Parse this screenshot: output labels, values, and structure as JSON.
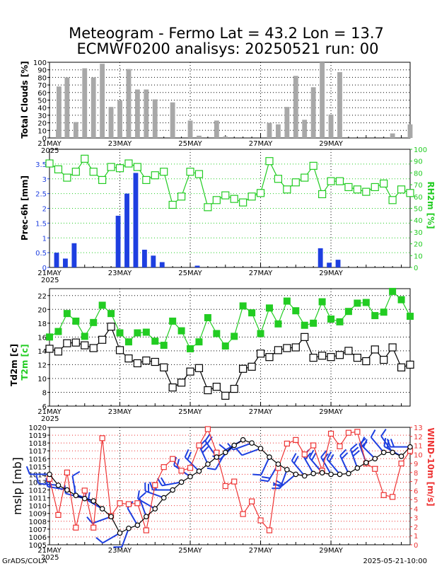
{
  "title_line1": "Meteogram - Fermo Lat = 43.2 Lon = 13.7",
  "title_line2": "ECMWF0200 analisys: 20250521 run: 00",
  "footer_left": "GrADS/COLA",
  "footer_right": "2025-05-21-10:00",
  "x_ticks": [
    "21MAY",
    "23MAY",
    "25MAY",
    "27MAY",
    "29MAY"
  ],
  "year_label": "2025",
  "colors": {
    "bar_gray": "#a8a8a8",
    "precip_blue": "#1e3fe0",
    "rh_green": "#22cc22",
    "wind_red": "#ee3333",
    "t2m_green": "#22cc22",
    "black": "#000000"
  },
  "chart_data": [
    {
      "type": "bar",
      "ylabel": "Total Clouds [%]",
      "ylim": [
        0,
        100
      ],
      "yticks": [
        0,
        10,
        20,
        30,
        40,
        50,
        60,
        70,
        80,
        90,
        100
      ],
      "step_hours": 6,
      "series": [
        {
          "values": [
            68,
            11,
            80,
            21,
            92,
            80,
            98,
            41,
            50,
            91,
            64,
            64,
            51,
            0,
            47,
            0,
            23,
            3,
            0,
            23,
            2,
            0,
            0,
            0,
            0,
            20,
            18,
            41,
            82,
            24,
            67,
            100,
            31,
            87,
            0,
            0,
            0,
            0,
            0,
            6,
            0,
            18
          ]
        }
      ]
    },
    {
      "type": "bar+line",
      "ylabel": "Prec-6h [mm]",
      "ylabel_right": "RH2m [%]",
      "ylim": [
        0,
        4
      ],
      "yticks": [
        0,
        0.5,
        1,
        1.5,
        2,
        2.5,
        3,
        3.5
      ],
      "ylim_right": [
        0,
        100
      ],
      "yticks_right": [
        0,
        10,
        20,
        30,
        40,
        50,
        60,
        70,
        80,
        90,
        100
      ],
      "step_hours": 6,
      "series": [
        {
          "axis": "left",
          "kind": "bar",
          "values": [
            0.5,
            0.3,
            0.82,
            0,
            0,
            0,
            0,
            1.75,
            2.5,
            3.2,
            0.6,
            0.4,
            0.18,
            0,
            0,
            0,
            0.06,
            0,
            0,
            0,
            0,
            0,
            0,
            0,
            0,
            0,
            0,
            0,
            0,
            0,
            0.65,
            0.16,
            0.26,
            0,
            0,
            0,
            0,
            0,
            0,
            0,
            0,
            0
          ]
        },
        {
          "axis": "right",
          "kind": "line",
          "values": [
            88,
            83,
            76,
            81,
            92,
            81,
            74,
            85,
            84,
            88,
            85,
            74,
            78,
            81,
            53,
            60,
            81,
            79,
            51,
            57,
            61,
            58,
            55,
            60,
            63,
            90,
            75,
            66,
            72,
            76,
            86,
            62,
            73,
            73,
            68,
            66,
            64,
            68,
            71,
            57,
            66,
            63
          ]
        }
      ]
    },
    {
      "type": "line",
      "ylabel": "Td2m [c]",
      "ylabel2": "T2m [c]",
      "ylim": [
        6,
        23
      ],
      "yticks": [
        6,
        8,
        10,
        12,
        14,
        16,
        18,
        20,
        22
      ],
      "step_hours": 6,
      "series": [
        {
          "name": "T2m",
          "values": [
            16.0,
            16.8,
            19.4,
            18.3,
            16.1,
            18.1,
            20.6,
            19.4,
            16.6,
            15.3,
            16.6,
            16.7,
            15.4,
            14.8,
            18.3,
            16.9,
            14.3,
            15.3,
            18.8,
            16.5,
            14.7,
            16.1,
            20.5,
            19.5,
            16.5,
            20.2,
            17.9,
            21.2,
            19.8,
            17.7,
            18.0,
            21.1,
            18.6,
            18.2,
            19.7,
            20.9,
            21.0,
            19.1,
            19.6,
            22.6,
            21.4,
            19.0
          ]
        },
        {
          "name": "Td2m",
          "values": [
            14.3,
            13.9,
            15.1,
            15.2,
            14.8,
            14.4,
            15.6,
            17.5,
            14.1,
            12.9,
            12.2,
            12.6,
            12.4,
            11.6,
            8.7,
            9.4,
            11.0,
            11.5,
            8.3,
            8.8,
            7.5,
            8.5,
            11.4,
            11.7,
            13.6,
            13.1,
            14.1,
            14.4,
            14.5,
            16.0,
            13.0,
            13.3,
            13.1,
            13.4,
            14.0,
            13.0,
            12.5,
            14.2,
            12.7,
            14.5,
            11.6,
            12.0
          ]
        }
      ]
    },
    {
      "type": "line",
      "ylabel": "mslp [mb]",
      "ylabel_right": "WIND-10m [m/s]",
      "ylim": [
        1005,
        1020
      ],
      "yticks": [
        1005,
        1006,
        1007,
        1008,
        1009,
        1010,
        1011,
        1012,
        1013,
        1014,
        1015,
        1016,
        1017,
        1018,
        1019,
        1020
      ],
      "ylim_right": [
        0,
        13
      ],
      "yticks_right": [
        0,
        1,
        2,
        3,
        4,
        5,
        6,
        7,
        8,
        9,
        10,
        11,
        12,
        13
      ],
      "step_hours": 6,
      "series": [
        {
          "name": "mslp",
          "axis": "left",
          "values": [
            1014.0,
            1012.6,
            1012.0,
            1011.3,
            1010.9,
            1010.6,
            1009.6,
            1008.6,
            1006.5,
            1007.1,
            1007.5,
            1008.6,
            1009.6,
            1011.0,
            1012.0,
            1013.0,
            1013.7,
            1014.4,
            1015.3,
            1016.2,
            1016.8,
            1017.7,
            1018.4,
            1018.0,
            1017.3,
            1016.2,
            1015.3,
            1014.6,
            1014.0,
            1013.8,
            1014.1,
            1014.2,
            1014.0,
            1014.0,
            1014.1,
            1014.8,
            1015.5,
            1016.0,
            1016.8,
            1016.8,
            1016.3,
            1017.5
          ]
        },
        {
          "name": "WIND-10m",
          "axis": "right",
          "values": [
            7.3,
            3.3,
            8.0,
            1.9,
            6.0,
            1.9,
            11.8,
            3.2,
            4.6,
            4.5,
            4.6,
            1.6,
            6.6,
            8.6,
            9.5,
            8.2,
            8.5,
            11.0,
            12.8,
            10.2,
            6.5,
            7.0,
            3.4,
            4.8,
            2.7,
            1.6,
            8.5,
            11.2,
            11.6,
            10.0,
            11.0,
            8.2,
            12.3,
            10.9,
            12.4,
            12.5,
            9.0,
            8.4,
            5.5,
            5.3,
            9.0,
            10.4
          ]
        },
        {
          "name": "wind-direction",
          "axis": "barbs",
          "values": [
            270,
            275,
            280,
            350,
            285,
            290,
            300,
            250,
            240,
            200,
            330,
            340,
            300,
            290,
            270,
            260,
            305,
            315,
            335,
            325,
            210,
            225,
            240,
            250,
            250,
            205,
            210,
            200,
            230,
            320,
            330,
            320,
            330,
            320,
            335,
            340,
            340,
            315,
            320,
            325,
            300,
            270
          ]
        }
      ]
    }
  ]
}
